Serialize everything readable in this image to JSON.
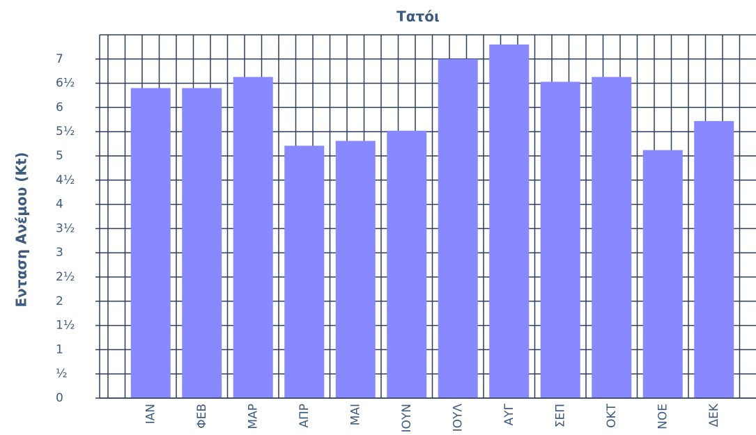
{
  "chart_data": {
    "type": "bar",
    "title": "Τατόι",
    "ylabel": "Ενταση Ανέμου (Kt)",
    "categories": [
      "ΙΑΝ",
      "ΦΕΒ",
      "ΜΑΡ",
      "ΑΠΡ",
      "ΜΑΙ",
      "ΙΟΥΝ",
      "ΙΟΥΛ",
      "ΑΥΓ",
      "ΣΕΠ",
      "ΟΚΤ",
      "ΝΟΕ",
      "ΔΕΚ"
    ],
    "values": [
      6.4,
      6.4,
      6.63,
      5.21,
      5.31,
      5.52,
      7.0,
      7.3,
      6.53,
      6.63,
      5.12,
      5.72
    ],
    "color": "#8888ff",
    "ylim": [
      0,
      7.5
    ],
    "yticks": [
      0,
      {
        "value": 0.5,
        "label": "½"
      },
      1,
      {
        "value": 1.5,
        "label": "1½"
      },
      2,
      {
        "value": 2.5,
        "label": "2½"
      },
      3,
      {
        "value": 3.5,
        "label": "3½"
      },
      4,
      {
        "value": 4.5,
        "label": "4½"
      },
      5,
      {
        "value": 5.5,
        "label": "5½"
      },
      6,
      {
        "value": 6.5,
        "label": "6½"
      },
      7
    ],
    "grid": true
  }
}
